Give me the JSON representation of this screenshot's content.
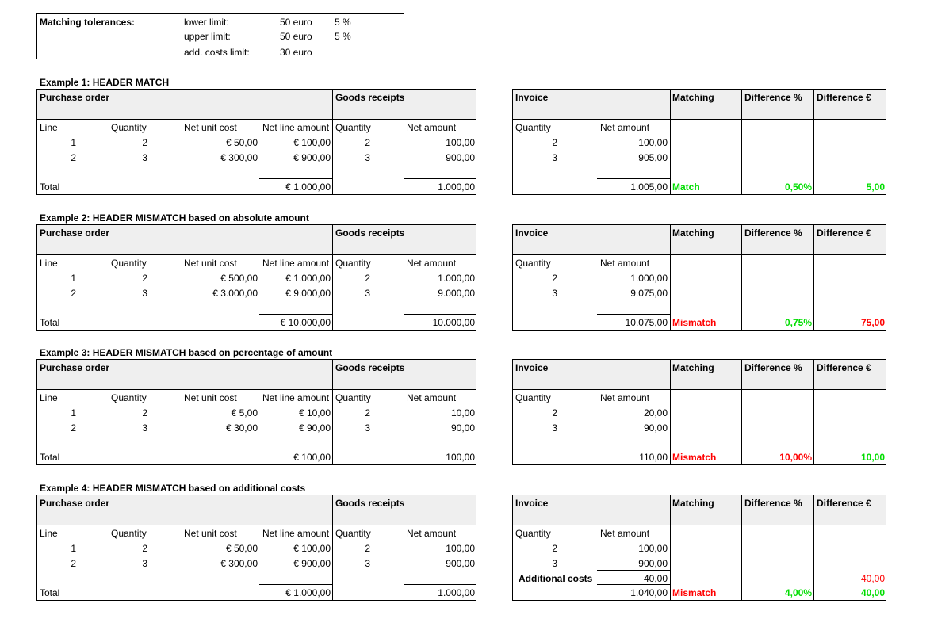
{
  "tolerances": {
    "title": "Matching tolerances:",
    "rows": [
      {
        "label": "lower limit:",
        "amount": "50 euro",
        "pct": "5 %"
      },
      {
        "label": "upper limit:",
        "amount": "50 euro",
        "pct": "5 %"
      },
      {
        "label": "add. costs limit:",
        "amount": "30 euro",
        "pct": ""
      }
    ]
  },
  "headers": {
    "purchase_order": "Purchase order",
    "goods_receipts": "Goods receipts",
    "invoice": "Invoice",
    "matching": "Matching",
    "difference_pct": "Difference %",
    "difference_eur": "Difference €",
    "line": "Line",
    "quantity": "Quantity",
    "net_unit_cost": "Net unit cost",
    "net_line_amount": "Net line amount",
    "net_amount": "Net amount",
    "total": "Total"
  },
  "examples": [
    {
      "title": "Example 1: HEADER MATCH",
      "po_lines": [
        {
          "line": "1",
          "qty": "2",
          "unit": "€ 50,00",
          "amount": "€ 100,00"
        },
        {
          "line": "2",
          "qty": "3",
          "unit": "€ 300,00",
          "amount": "€ 900,00"
        }
      ],
      "po_total": "€ 1.000,00",
      "gr_lines": [
        {
          "qty": "2",
          "amount": "100,00"
        },
        {
          "qty": "3",
          "amount": "900,00"
        }
      ],
      "gr_total": "1.000,00",
      "inv_lines": [
        {
          "qty": "2",
          "amount": "100,00"
        },
        {
          "qty": "3",
          "amount": "905,00"
        }
      ],
      "additional_label": "",
      "additional_amount": "",
      "additional_diff_eur": "",
      "inv_total": "1.005,00",
      "matching": "Match",
      "diff_pct": "0,50%",
      "diff_eur": "5,00",
      "matching_color": "#00dd00",
      "diff_pct_color": "#00dd00",
      "diff_eur_color": "#00dd00"
    },
    {
      "title": "Example 2: HEADER MISMATCH based on absolute amount",
      "po_lines": [
        {
          "line": "1",
          "qty": "2",
          "unit": "€ 500,00",
          "amount": "€ 1.000,00"
        },
        {
          "line": "2",
          "qty": "3",
          "unit": "€ 3.000,00",
          "amount": "€ 9.000,00"
        }
      ],
      "po_total": "€ 10.000,00",
      "gr_lines": [
        {
          "qty": "2",
          "amount": "1.000,00"
        },
        {
          "qty": "3",
          "amount": "9.000,00"
        }
      ],
      "gr_total": "10.000,00",
      "inv_lines": [
        {
          "qty": "2",
          "amount": "1.000,00"
        },
        {
          "qty": "3",
          "amount": "9.075,00"
        }
      ],
      "additional_label": "",
      "additional_amount": "",
      "additional_diff_eur": "",
      "inv_total": "10.075,00",
      "matching": "Mismatch",
      "diff_pct": "0,75%",
      "diff_eur": "75,00",
      "matching_color": "#ff0000",
      "diff_pct_color": "#00dd00",
      "diff_eur_color": "#ff0000"
    },
    {
      "title": "Example 3: HEADER MISMATCH based on percentage of amount",
      "po_lines": [
        {
          "line": "1",
          "qty": "2",
          "unit": "€ 5,00",
          "amount": "€ 10,00"
        },
        {
          "line": "2",
          "qty": "3",
          "unit": "€ 30,00",
          "amount": "€ 90,00"
        }
      ],
      "po_total": "€ 100,00",
      "gr_lines": [
        {
          "qty": "2",
          "amount": "10,00"
        },
        {
          "qty": "3",
          "amount": "90,00"
        }
      ],
      "gr_total": "100,00",
      "inv_lines": [
        {
          "qty": "2",
          "amount": "20,00"
        },
        {
          "qty": "3",
          "amount": "90,00"
        }
      ],
      "additional_label": "",
      "additional_amount": "",
      "additional_diff_eur": "",
      "inv_total": "110,00",
      "matching": "Mismatch",
      "diff_pct": "10,00%",
      "diff_eur": "10,00",
      "matching_color": "#ff0000",
      "diff_pct_color": "#ff0000",
      "diff_eur_color": "#00dd00"
    },
    {
      "title": "Example 4: HEADER MISMATCH based on additional costs",
      "po_lines": [
        {
          "line": "1",
          "qty": "2",
          "unit": "€ 50,00",
          "amount": "€ 100,00"
        },
        {
          "line": "2",
          "qty": "3",
          "unit": "€ 300,00",
          "amount": "€ 900,00"
        }
      ],
      "po_total": "€ 1.000,00",
      "gr_lines": [
        {
          "qty": "2",
          "amount": "100,00"
        },
        {
          "qty": "3",
          "amount": "900,00"
        }
      ],
      "gr_total": "1.000,00",
      "inv_lines": [
        {
          "qty": "2",
          "amount": "100,00"
        },
        {
          "qty": "3",
          "amount": "900,00"
        }
      ],
      "additional_label": "Additional costs",
      "additional_amount": "40,00",
      "additional_diff_eur": "40,00",
      "inv_total": "1.040,00",
      "matching": "Mismatch",
      "diff_pct": "4,00%",
      "diff_eur": "40,00",
      "matching_color": "#ff0000",
      "diff_pct_color": "#00dd00",
      "diff_eur_color": "#00dd00",
      "additional_color": "#ff0000"
    }
  ]
}
